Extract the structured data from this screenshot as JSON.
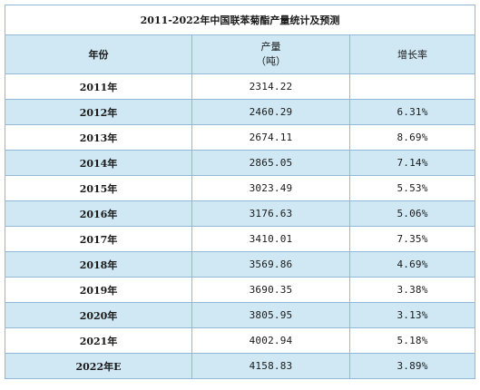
{
  "table": {
    "title": "2011-2022年中国联苯菊酯产量统计及预测",
    "headers": {
      "year": "年份",
      "production_line1": "产量",
      "production_line2": "（吨）",
      "growth": "增长率"
    },
    "rows": [
      {
        "year": "2011年",
        "production": "2314.22",
        "growth": ""
      },
      {
        "year": "2012年",
        "production": "2460.29",
        "growth": "6.31%"
      },
      {
        "year": "2013年",
        "production": "2674.11",
        "growth": "8.69%"
      },
      {
        "year": "2014年",
        "production": "2865.05",
        "growth": "7.14%"
      },
      {
        "year": "2015年",
        "production": "3023.49",
        "growth": "5.53%"
      },
      {
        "year": "2016年",
        "production": "3176.63",
        "growth": "5.06%"
      },
      {
        "year": "2017年",
        "production": "3410.01",
        "growth": "7.35%"
      },
      {
        "year": "2018年",
        "production": "3569.86",
        "growth": "4.69%"
      },
      {
        "year": "2019年",
        "production": "3690.35",
        "growth": "3.38%"
      },
      {
        "year": "2020年",
        "production": "3805.95",
        "growth": "3.13%"
      },
      {
        "year": "2021年",
        "production": "4002.94",
        "growth": "5.18%"
      },
      {
        "year": "2022年E",
        "production": "4158.83",
        "growth": "3.89%"
      }
    ]
  },
  "colors": {
    "border": "#8fb9d6",
    "stripe": "#cfe8f3",
    "text": "#1a1a1a"
  }
}
